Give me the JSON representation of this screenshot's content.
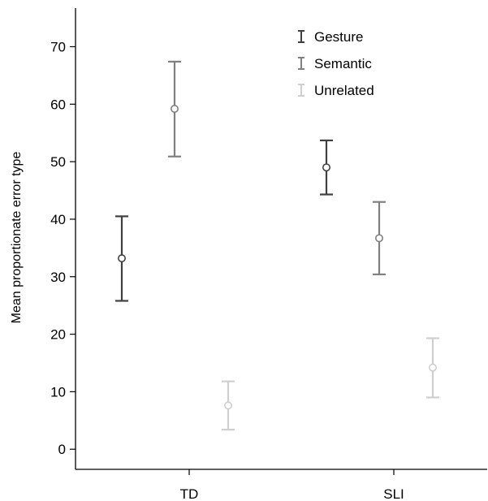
{
  "chart_data": {
    "type": "scatter",
    "ylabel": "Mean proportionate error type",
    "xlabel": "",
    "categories": [
      "TD",
      "SLI"
    ],
    "ylim": [
      -3.5,
      76
    ],
    "yticks": [
      0,
      10,
      20,
      30,
      40,
      50,
      60,
      70
    ],
    "legend_position": "top-right",
    "grid": false,
    "series": [
      {
        "name": "Gesture",
        "color": "#404040",
        "means": [
          33.2,
          49.0
        ],
        "lower": [
          25.8,
          44.3
        ],
        "upper": [
          40.5,
          53.7
        ]
      },
      {
        "name": "Semantic",
        "color": "#808080",
        "means": [
          59.2,
          36.7
        ],
        "lower": [
          50.9,
          30.4
        ],
        "upper": [
          67.4,
          43.0
        ]
      },
      {
        "name": "Unrelated",
        "color": "#cfcfcf",
        "means": [
          7.6,
          14.2
        ],
        "lower": [
          3.4,
          9.0
        ],
        "upper": [
          11.8,
          19.3
        ]
      }
    ]
  }
}
